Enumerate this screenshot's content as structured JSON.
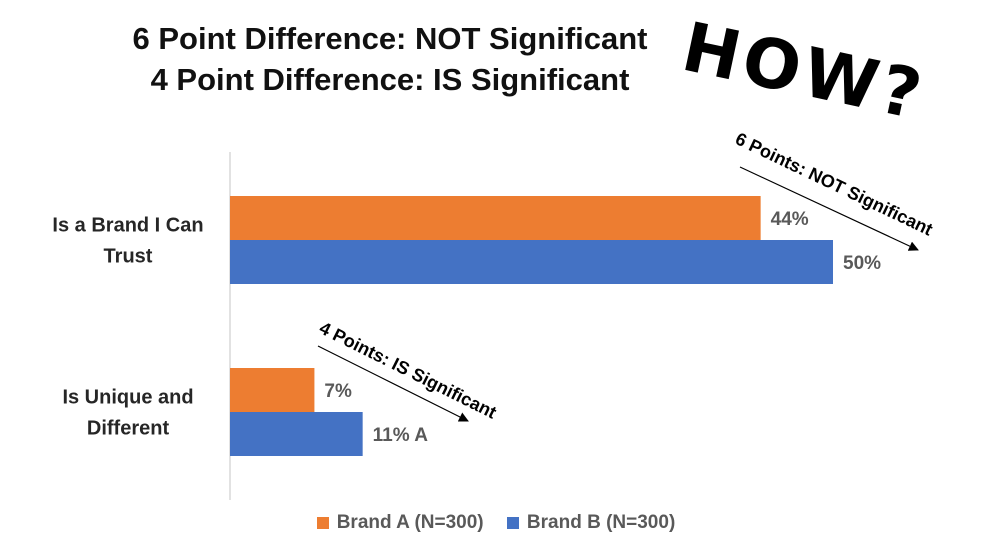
{
  "titles": {
    "line1": "6 Point Difference: NOT Significant",
    "line2": "4 Point Difference: IS Significant",
    "overlay": "HOW?"
  },
  "annotations": [
    {
      "text": "6 Points:  NOT Significant"
    },
    {
      "text": "4 Points: IS Significant"
    }
  ],
  "colors": {
    "brand_a": "#ED7D31",
    "brand_b": "#4472C4"
  },
  "chart_data": {
    "type": "bar",
    "orientation": "horizontal",
    "categories": [
      "Is a Brand I Can\nTrust",
      "Is Unique and\nDifferent"
    ],
    "series": [
      {
        "name": "Brand A (N=300)",
        "values": [
          44,
          7
        ],
        "labels": [
          "44%",
          "7%"
        ]
      },
      {
        "name": "Brand B (N=300)",
        "values": [
          50,
          11
        ],
        "labels": [
          "50%",
          "11% A"
        ]
      }
    ],
    "xlim": [
      0,
      50
    ],
    "legend": "bottom",
    "grid": false
  }
}
